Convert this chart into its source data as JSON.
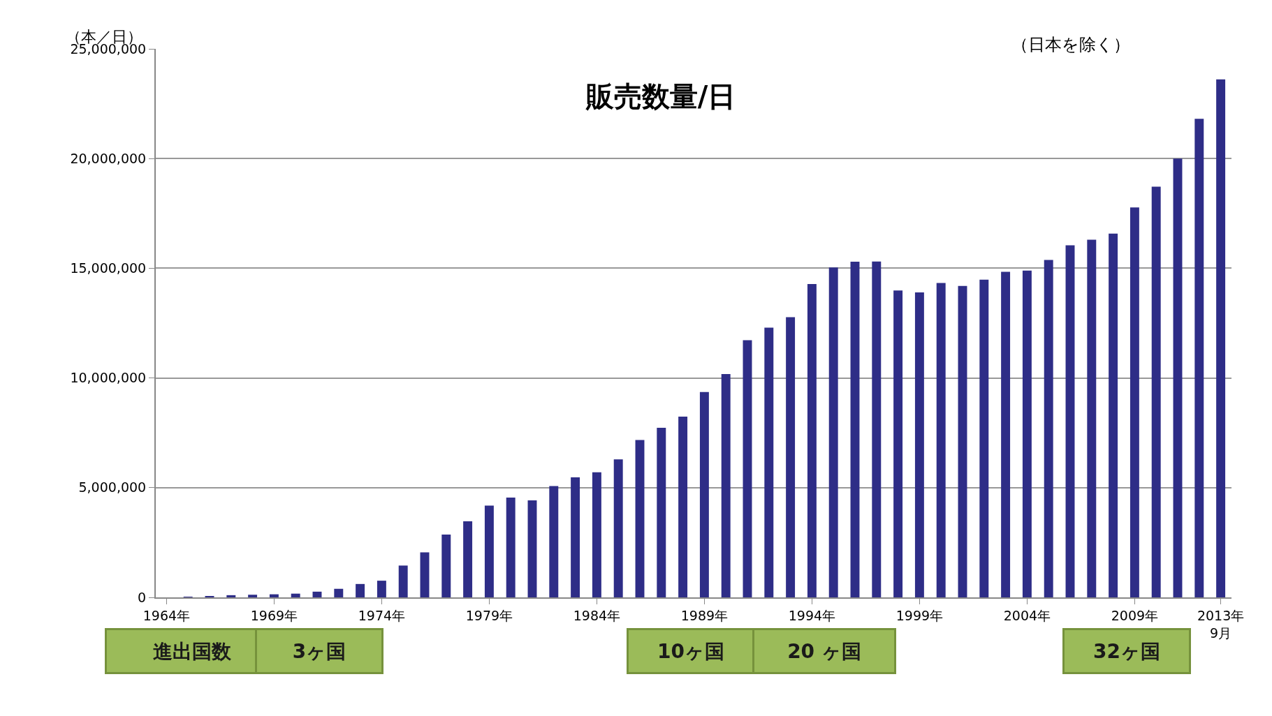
{
  "chart_data": {
    "type": "bar",
    "title": "販売数量/日",
    "ylabel": "（本／日）",
    "annotations": [
      "（日本を除く）",
      "進出国数",
      "3ヶ国",
      "10ヶ国",
      "20 ヶ国",
      "32ヶ国"
    ],
    "categories": [
      "1964年",
      null,
      null,
      null,
      null,
      "1969年",
      null,
      null,
      null,
      null,
      "1974年",
      null,
      null,
      null,
      null,
      "1979年",
      null,
      null,
      null,
      null,
      "1984年",
      null,
      null,
      null,
      null,
      "1989年",
      null,
      null,
      null,
      null,
      "1994年",
      null,
      null,
      null,
      null,
      "1999年",
      null,
      null,
      null,
      null,
      "2004年",
      null,
      null,
      null,
      null,
      "2009年",
      null,
      null,
      null,
      "2013年\n9月"
    ],
    "values": [
      0,
      20000,
      60000,
      100000,
      120000,
      140000,
      170000,
      260000,
      390000,
      610000,
      760000,
      1450000,
      2050000,
      2860000,
      3470000,
      4180000,
      4550000,
      4420000,
      5070000,
      5470000,
      5700000,
      6290000,
      7170000,
      7730000,
      8240000,
      9360000,
      10180000,
      11720000,
      12290000,
      12770000,
      14280000,
      15040000,
      15300000,
      15310000,
      13990000,
      13900000,
      14330000,
      14190000,
      14480000,
      14840000,
      14890000,
      15380000,
      16050000,
      16300000,
      16580000,
      17770000,
      18720000,
      20000000,
      21810000,
      23610000
    ],
    "color": "#2e2d87",
    "ylim": [
      0,
      25000000
    ],
    "yticks": [
      0,
      {
        "value": 5000000,
        "label": "5,000,000"
      },
      {
        "value": 10000000,
        "label": "10,000,000"
      },
      {
        "value": 15000000,
        "label": "15,000,000"
      },
      {
        "value": 20000000,
        "label": "20,000,000"
      },
      {
        "value": 25000000,
        "label": "25,000,000"
      }
    ],
    "grid": "y",
    "legend": false
  }
}
